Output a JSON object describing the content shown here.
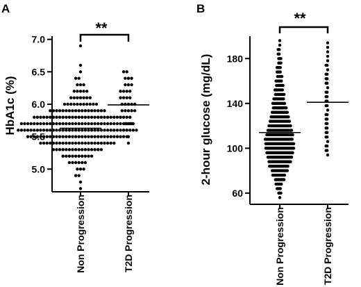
{
  "chart_data": [
    {
      "type": "scatter",
      "panel": "A",
      "ylabel": "HbA1c (%)",
      "ylim": [
        4.65,
        7.05
      ],
      "yticks": [
        5.0,
        5.5,
        6.0,
        6.5,
        7.0
      ],
      "ytick_labels": [
        "5.0",
        "5.5",
        "6.0",
        "6.5",
        "7.0"
      ],
      "categories": [
        "Non Progression",
        "T2D Progression"
      ],
      "significance": "**",
      "grid": false,
      "groups": [
        {
          "category": "Non Progression",
          "mean": 5.63,
          "distribution": [
            {
              "value": 4.7,
              "count": 1
            },
            {
              "value": 4.8,
              "count": 1
            },
            {
              "value": 4.9,
              "count": 2
            },
            {
              "value": 5.0,
              "count": 3
            },
            {
              "value": 5.1,
              "count": 6
            },
            {
              "value": 5.2,
              "count": 10
            },
            {
              "value": 5.3,
              "count": 16
            },
            {
              "value": 5.4,
              "count": 24
            },
            {
              "value": 5.5,
              "count": 32
            },
            {
              "value": 5.6,
              "count": 38
            },
            {
              "value": 5.7,
              "count": 36
            },
            {
              "value": 5.8,
              "count": 28
            },
            {
              "value": 5.9,
              "count": 18
            },
            {
              "value": 6.0,
              "count": 11
            },
            {
              "value": 6.1,
              "count": 7
            },
            {
              "value": 6.2,
              "count": 5
            },
            {
              "value": 6.3,
              "count": 3
            },
            {
              "value": 6.4,
              "count": 2
            },
            {
              "value": 6.5,
              "count": 1
            },
            {
              "value": 6.6,
              "count": 1
            },
            {
              "value": 6.9,
              "count": 1
            }
          ]
        },
        {
          "category": "T2D Progression",
          "mean": 5.99,
          "distribution": [
            {
              "value": 5.4,
              "count": 1
            },
            {
              "value": 5.5,
              "count": 1
            },
            {
              "value": 5.6,
              "count": 2
            },
            {
              "value": 5.7,
              "count": 3
            },
            {
              "value": 5.8,
              "count": 4
            },
            {
              "value": 5.9,
              "count": 5
            },
            {
              "value": 6.0,
              "count": 5
            },
            {
              "value": 6.1,
              "count": 4
            },
            {
              "value": 6.2,
              "count": 4
            },
            {
              "value": 6.3,
              "count": 3
            },
            {
              "value": 6.4,
              "count": 3
            },
            {
              "value": 6.5,
              "count": 2
            }
          ]
        }
      ]
    },
    {
      "type": "scatter",
      "panel": "B",
      "ylabel": "2-hour glucose (mg/dL)",
      "ylim": [
        50,
        200
      ],
      "yticks": [
        60,
        100,
        140,
        180
      ],
      "ytick_labels": [
        "60",
        "100",
        "140",
        "180"
      ],
      "categories": [
        "Non Progression",
        "T2D Progression"
      ],
      "significance": "**",
      "grid": false,
      "groups": [
        {
          "category": "Non Progression",
          "mean": 114,
          "distribution": [
            {
              "value": 56,
              "count": 1
            },
            {
              "value": 60,
              "count": 3
            },
            {
              "value": 64,
              "count": 4
            },
            {
              "value": 68,
              "count": 6
            },
            {
              "value": 72,
              "count": 9
            },
            {
              "value": 76,
              "count": 12
            },
            {
              "value": 80,
              "count": 15
            },
            {
              "value": 84,
              "count": 18
            },
            {
              "value": 88,
              "count": 21
            },
            {
              "value": 92,
              "count": 23
            },
            {
              "value": 96,
              "count": 25
            },
            {
              "value": 100,
              "count": 27
            },
            {
              "value": 104,
              "count": 27
            },
            {
              "value": 108,
              "count": 26
            },
            {
              "value": 112,
              "count": 25
            },
            {
              "value": 116,
              "count": 23
            },
            {
              "value": 120,
              "count": 21
            },
            {
              "value": 124,
              "count": 19
            },
            {
              "value": 128,
              "count": 17
            },
            {
              "value": 132,
              "count": 15
            },
            {
              "value": 136,
              "count": 13
            },
            {
              "value": 140,
              "count": 12
            },
            {
              "value": 144,
              "count": 10
            },
            {
              "value": 148,
              "count": 9
            },
            {
              "value": 152,
              "count": 8
            },
            {
              "value": 156,
              "count": 7
            },
            {
              "value": 160,
              "count": 6
            },
            {
              "value": 164,
              "count": 5
            },
            {
              "value": 168,
              "count": 4
            },
            {
              "value": 172,
              "count": 4
            },
            {
              "value": 176,
              "count": 3
            },
            {
              "value": 180,
              "count": 3
            },
            {
              "value": 184,
              "count": 2
            },
            {
              "value": 188,
              "count": 2
            },
            {
              "value": 192,
              "count": 1
            },
            {
              "value": 196,
              "count": 1
            }
          ]
        },
        {
          "category": "T2D Progression",
          "mean": 141,
          "distribution": [
            {
              "value": 94,
              "count": 1
            },
            {
              "value": 98,
              "count": 2
            },
            {
              "value": 102,
              "count": 2
            },
            {
              "value": 106,
              "count": 1
            },
            {
              "value": 110,
              "count": 2
            },
            {
              "value": 114,
              "count": 2
            },
            {
              "value": 118,
              "count": 2
            },
            {
              "value": 122,
              "count": 2
            },
            {
              "value": 126,
              "count": 2
            },
            {
              "value": 130,
              "count": 2
            },
            {
              "value": 134,
              "count": 1
            },
            {
              "value": 138,
              "count": 2
            },
            {
              "value": 142,
              "count": 2
            },
            {
              "value": 146,
              "count": 2
            },
            {
              "value": 150,
              "count": 2
            },
            {
              "value": 154,
              "count": 1
            },
            {
              "value": 158,
              "count": 2
            },
            {
              "value": 162,
              "count": 2
            },
            {
              "value": 166,
              "count": 2
            },
            {
              "value": 170,
              "count": 1
            },
            {
              "value": 174,
              "count": 2
            },
            {
              "value": 178,
              "count": 1
            },
            {
              "value": 182,
              "count": 1
            },
            {
              "value": 186,
              "count": 1
            },
            {
              "value": 190,
              "count": 1
            },
            {
              "value": 194,
              "count": 1
            }
          ]
        }
      ]
    }
  ]
}
